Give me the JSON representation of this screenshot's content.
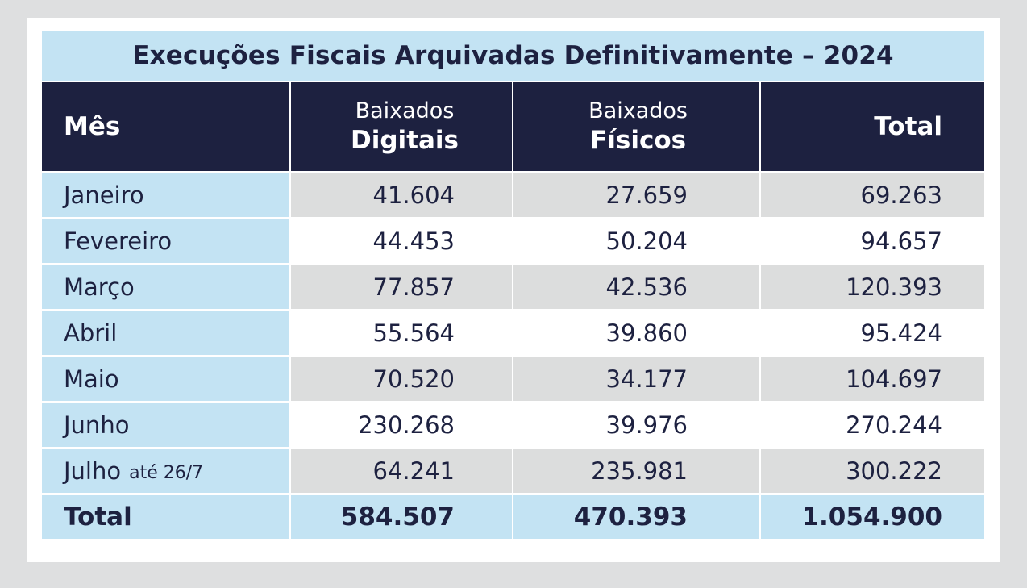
{
  "title": "Execuções Fiscais Arquivadas Definitivamente – 2024",
  "header": {
    "month": "Mês",
    "digital_line1": "Baixados",
    "digital_line2": "Digitais",
    "physical_line1": "Baixados",
    "physical_line2": "Físicos",
    "total": "Total"
  },
  "rows": [
    {
      "month": "Janeiro",
      "note": "",
      "digital": "41.604",
      "physical": "27.659",
      "total": "69.263"
    },
    {
      "month": "Fevereiro",
      "note": "",
      "digital": "44.453",
      "physical": "50.204",
      "total": "94.657"
    },
    {
      "month": "Março",
      "note": "",
      "digital": "77.857",
      "physical": "42.536",
      "total": "120.393"
    },
    {
      "month": "Abril",
      "note": "",
      "digital": "55.564",
      "physical": "39.860",
      "total": "95.424"
    },
    {
      "month": "Maio",
      "note": "",
      "digital": "70.520",
      "physical": "34.177",
      "total": "104.697"
    },
    {
      "month": "Junho",
      "note": "",
      "digital": "230.268",
      "physical": "39.976",
      "total": "270.244"
    },
    {
      "month": "Julho",
      "note": "até 26/7",
      "digital": "64.241",
      "physical": "235.981",
      "total": "300.222"
    }
  ],
  "totals": {
    "label": "Total",
    "digital": "584.507",
    "physical": "470.393",
    "total": "1.054.900"
  },
  "colors": {
    "navy": "#1d2140",
    "light_blue": "#c3e3f3",
    "row_gray": "#dcdddd"
  }
}
